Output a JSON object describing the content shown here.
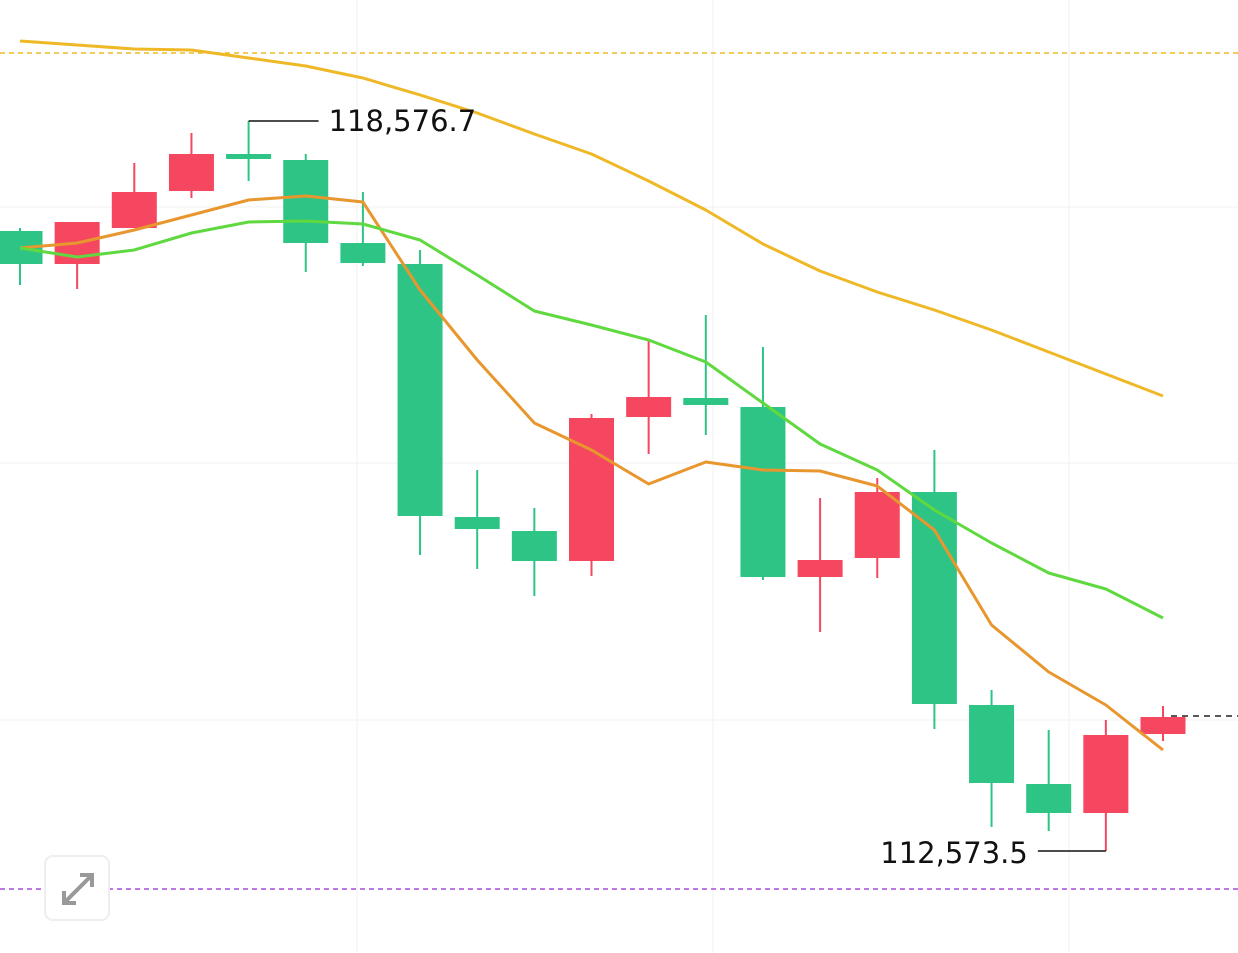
{
  "chart_data": {
    "type": "candlestick",
    "up_color": "#f5475f",
    "down_color": "#2ec486",
    "open": [
      117672.1,
      117400.7,
      117696.8,
      118001.0,
      118305.3,
      118256.0,
      117573.4,
      117400.7,
      115320.2,
      115205.0,
      114958.3,
      116142.5,
      116298.8,
      116224.8,
      114826.8,
      114983.0,
      115525.8,
      113774.1,
      113124.5,
      112886.0,
      113535.6
    ],
    "high": [
      117696.8,
      117746.1,
      118231.3,
      118478.0,
      118576.7,
      118305.3,
      117992.8,
      117515.9,
      115706.7,
      115394.2,
      116167.2,
      116784.0,
      116981.3,
      116718.2,
      115476.4,
      115640.9,
      115871.1,
      113897.5,
      113568.5,
      113650.8,
      113765.9
    ],
    "low": [
      117228.0,
      117195.1,
      117696.8,
      117943.5,
      118083.3,
      117334.9,
      117384.3,
      115007.7,
      114892.5,
      114670.5,
      114835.0,
      115838.2,
      115994.5,
      114802.1,
      114374.4,
      114818.5,
      113576.7,
      112770.8,
      112737.9,
      112573.5,
      113478.1
    ],
    "close": [
      117400.7,
      117746.1,
      117992.8,
      118305.3,
      118264.2,
      117573.4,
      117408.9,
      115328.4,
      115221.5,
      114958.3,
      116134.3,
      116307.0,
      116241.2,
      114826.8,
      114966.5,
      115525.8,
      113782.3,
      113132.7,
      112886.0,
      113527.4,
      113675.4
    ],
    "lines": [
      {
        "color": "#e8962e",
        "values": [
          117532.3,
          117573.5,
          117680.4,
          117803.7,
          117927.1,
          117960.0,
          117910.6,
          117187.0,
          116611.3,
          116093.2,
          115871.2,
          115591.6,
          115772.5,
          115706.7,
          115698.5,
          115575.1,
          115213.3,
          114432.0,
          114045.5,
          113774.2,
          113404.1
        ]
      },
      {
        "color": "#5fd93f",
        "values": [
          117532.3,
          117458.3,
          117515.9,
          117655.7,
          117746.2,
          117754.4,
          117729.7,
          117598.1,
          117310.3,
          117014.3,
          116899.1,
          116775.8,
          116594.9,
          116257.7,
          115920.5,
          115706.7,
          115377.8,
          115106.4,
          114859.7,
          114728.1,
          114489.6
        ]
      },
      {
        "color": "#efb827",
        "values": [
          119234.6,
          119201.7,
          119168.8,
          119160.6,
          119094.8,
          119029.0,
          118930.4,
          118790.6,
          118642.5,
          118469.8,
          118305.4,
          118083.3,
          117844.8,
          117565.2,
          117343.2,
          117170.5,
          117022.5,
          116858.0,
          116677.1,
          116496.2,
          116315.3
        ]
      }
    ],
    "hlines": [
      {
        "value": 119135.9,
        "color": "#efb827"
      },
      {
        "value": 112261.0,
        "color": "#a64fd6"
      },
      {
        "value": 113683.7,
        "color": "#222222"
      }
    ],
    "annotations": [
      {
        "text": "118,576.7",
        "value": 118576.7
      },
      {
        "text": "112,573.5",
        "value": 112573.5
      }
    ],
    "ylim": [
      111734.7,
      119571.8
    ]
  }
}
